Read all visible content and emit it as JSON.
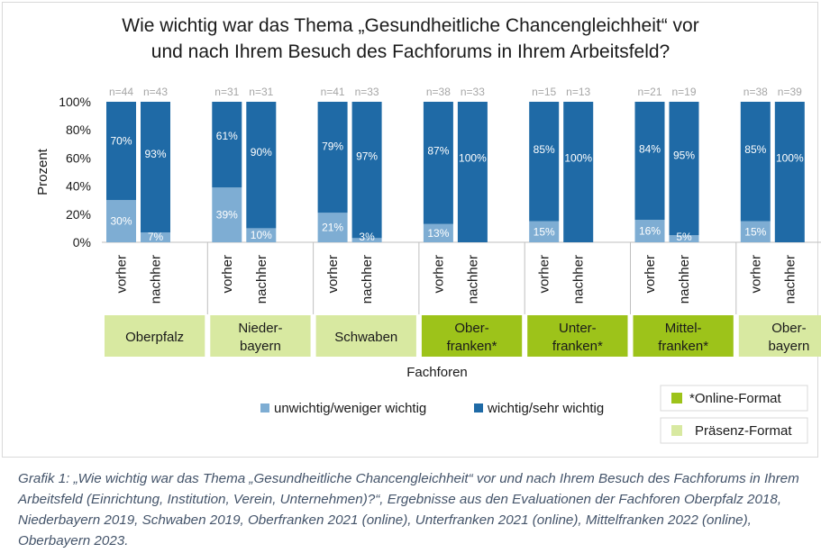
{
  "chart_data": {
    "type": "bar",
    "stacked": true,
    "title_line1": "Wie wichtig war das Thema „Gesundheitliche Chancengleichheit“ vor",
    "title_line2": "und nach Ihrem Besuch des Fachforums in Ihrem Arbeitsfeld?",
    "ylabel": "Prozent",
    "xlabel": "Fachforen",
    "ylim": [
      0,
      100
    ],
    "yticks": [
      "0%",
      "20%",
      "40%",
      "60%",
      "80%",
      "100%"
    ],
    "grid": false,
    "legend_position": "bottom",
    "series": [
      {
        "name": "unwichtig/weniger wichtig",
        "color": "#7eadd3"
      },
      {
        "name": "wichtig/sehr wichtig",
        "color": "#1f6aa6"
      }
    ],
    "format_legend": [
      {
        "label": "*Online-Format",
        "color": "#9dc31a"
      },
      {
        "label": "Präsenz-Format",
        "color": "#d8e9a1"
      }
    ],
    "groups": [
      {
        "name_lines": [
          "Oberpfalz"
        ],
        "format": "praesenz",
        "bars": [
          {
            "label": "vorher",
            "n": "n=44",
            "low": 30,
            "high": 70,
            "low_label": "30%",
            "high_label": "70%"
          },
          {
            "label": "nachher",
            "n": "n=43",
            "low": 7,
            "high": 93,
            "low_label": "7%",
            "high_label": "93%"
          }
        ]
      },
      {
        "name_lines": [
          "Nieder-",
          "bayern"
        ],
        "format": "praesenz",
        "bars": [
          {
            "label": "vorher",
            "n": "n=31",
            "low": 39,
            "high": 61,
            "low_label": "39%",
            "high_label": "61%"
          },
          {
            "label": "nachher",
            "n": "n=31",
            "low": 10,
            "high": 90,
            "low_label": "10%",
            "high_label": "90%"
          }
        ]
      },
      {
        "name_lines": [
          "Schwaben"
        ],
        "format": "praesenz",
        "bars": [
          {
            "label": "vorher",
            "n": "n=41",
            "low": 21,
            "high": 79,
            "low_label": "21%",
            "high_label": "79%"
          },
          {
            "label": "nachher",
            "n": "n=33",
            "low": 3,
            "high": 97,
            "low_label": "3%",
            "high_label": "97%"
          }
        ]
      },
      {
        "name_lines": [
          "Ober-",
          "franken*"
        ],
        "format": "online",
        "bars": [
          {
            "label": "vorher",
            "n": "n=38",
            "low": 13,
            "high": 87,
            "low_label": "13%",
            "high_label": "87%"
          },
          {
            "label": "nachher",
            "n": "n=33",
            "low": 0,
            "high": 100,
            "low_label": "",
            "high_label": "100%"
          }
        ]
      },
      {
        "name_lines": [
          "Unter-",
          "franken*"
        ],
        "format": "online",
        "bars": [
          {
            "label": "vorher",
            "n": "n=15",
            "low": 15,
            "high": 85,
            "low_label": "15%",
            "high_label": "85%"
          },
          {
            "label": "nachher",
            "n": "n=13",
            "low": 0,
            "high": 100,
            "low_label": "",
            "high_label": "100%"
          }
        ]
      },
      {
        "name_lines": [
          "Mittel-",
          "franken*"
        ],
        "format": "online",
        "bars": [
          {
            "label": "vorher",
            "n": "n=21",
            "low": 16,
            "high": 84,
            "low_label": "16%",
            "high_label": "84%"
          },
          {
            "label": "nachher",
            "n": "n=19",
            "low": 5,
            "high": 95,
            "low_label": "5%",
            "high_label": "95%"
          }
        ]
      },
      {
        "name_lines": [
          "Ober-",
          "bayern"
        ],
        "format": "praesenz",
        "bars": [
          {
            "label": "vorher",
            "n": "n=38",
            "low": 15,
            "high": 85,
            "low_label": "15%",
            "high_label": "85%"
          },
          {
            "label": "nachher",
            "n": "n=39",
            "low": 0,
            "high": 100,
            "low_label": "",
            "high_label": "100%"
          }
        ]
      }
    ]
  },
  "caption": "Grafik 1: „Wie wichtig war das Thema „Gesundheitliche Chancengleichheit“ vor und nach Ihrem Besuch des Fachforums in Ihrem Arbeitsfeld (Einrichtung, Institution, Verein, Unternehmen)?“, Ergebnisse aus den Evaluationen der Fachforen Oberpfalz 2018, Niederbayern 2019, Schwaben 2019, Oberfranken 2021 (online), Unterfranken 2021 (online), Mittelfranken 2022 (online), Oberbayern 2023."
}
